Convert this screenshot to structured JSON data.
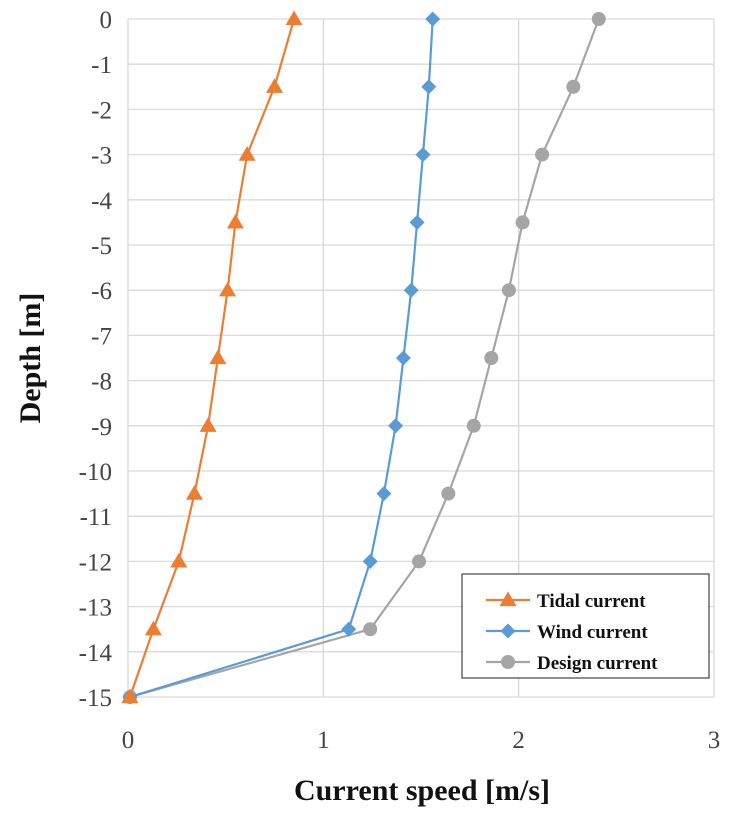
{
  "chart_data": {
    "type": "line",
    "title": "",
    "xlabel": "Current speed [m/s]",
    "ylabel": "Depth [m]",
    "xlim": [
      0,
      3
    ],
    "ylim": [
      -15,
      0
    ],
    "xticks": [
      0,
      1,
      2,
      3
    ],
    "yticks": [
      0,
      -1,
      -2,
      -3,
      -4,
      -5,
      -6,
      -7,
      -8,
      -9,
      -10,
      -11,
      -12,
      -13,
      -14,
      -15
    ],
    "grid": true,
    "legend_position": "bottom-right",
    "series": [
      {
        "name": "Tidal current",
        "marker": "triangle",
        "color": "#ED7D31",
        "depth": [
          0,
          -1.5,
          -3,
          -4.5,
          -6,
          -7.5,
          -9,
          -10.5,
          -12,
          -13.5,
          -15
        ],
        "speed": [
          0.85,
          0.75,
          0.61,
          0.55,
          0.51,
          0.46,
          0.41,
          0.34,
          0.26,
          0.13,
          0.01
        ]
      },
      {
        "name": "Wind current",
        "marker": "diamond",
        "color": "#5B9BD5",
        "depth": [
          0,
          -1.5,
          -3,
          -4.5,
          -6,
          -7.5,
          -9,
          -10.5,
          -12,
          -13.5,
          -15
        ],
        "speed": [
          1.56,
          1.54,
          1.51,
          1.48,
          1.45,
          1.41,
          1.37,
          1.31,
          1.24,
          1.13,
          0.01
        ]
      },
      {
        "name": "Design current",
        "marker": "circle",
        "color": "#A5A5A5",
        "depth": [
          0,
          -1.5,
          -3,
          -4.5,
          -6,
          -7.5,
          -9,
          -10.5,
          -12,
          -13.5,
          -15
        ],
        "speed": [
          2.41,
          2.28,
          2.12,
          2.02,
          1.95,
          1.86,
          1.77,
          1.64,
          1.49,
          1.24,
          0.01
        ]
      }
    ]
  }
}
